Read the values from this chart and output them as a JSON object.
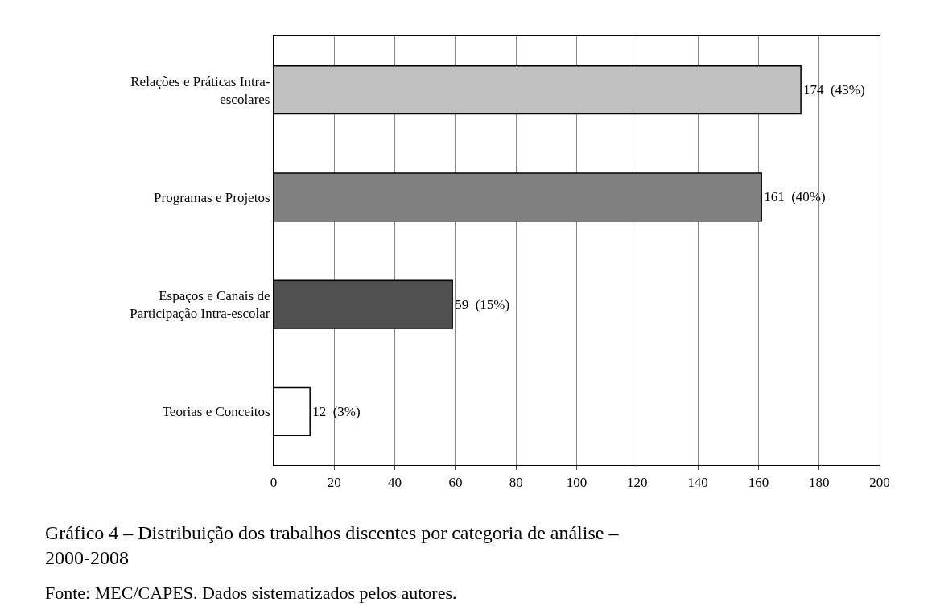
{
  "chart_data": {
    "type": "bar",
    "orientation": "horizontal",
    "categories": [
      "Relações e Práticas Intra-\nescolares",
      "Programas e Projetos",
      "Espaços e Canais de\nParticipação Intra-escolar",
      "Teorias e Conceitos"
    ],
    "values": [
      174,
      161,
      59,
      12
    ],
    "colors": [
      "#c0c0c0",
      "#808080",
      "#505050",
      "#ffffff"
    ],
    "value_labels": [
      "174  (43%)",
      "161  (40%)",
      "59  (15%)",
      "12  (3%)"
    ],
    "xlim": [
      0,
      200
    ],
    "xticks": [
      0,
      20,
      40,
      60,
      80,
      100,
      120,
      140,
      160,
      180,
      200
    ],
    "grid": "x",
    "annotations": [
      "Gráfico 4 – Distribuição dos trabalhos discentes por categoria de análise –\n2000-2008",
      "Fonte: MEC/CAPES. Dados sistematizados pelos autores."
    ]
  }
}
